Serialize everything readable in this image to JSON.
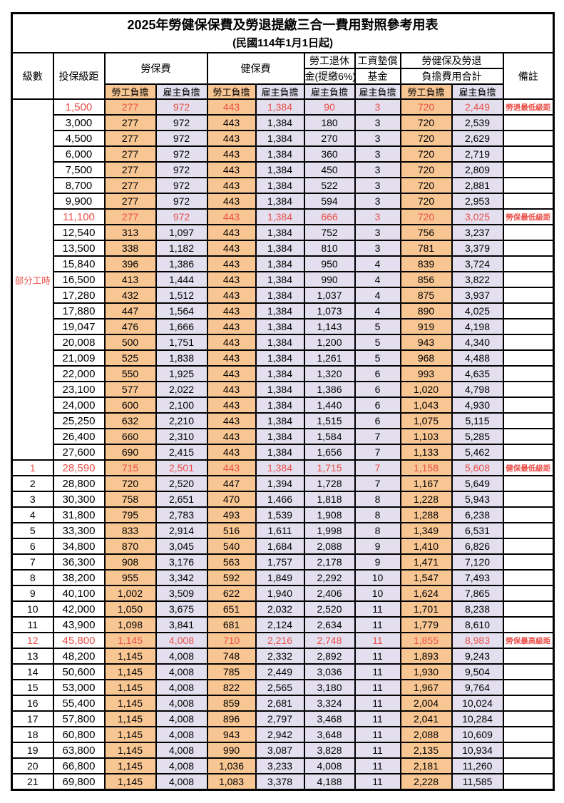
{
  "title": "2025年勞健保保費及勞退提繳三合一費用對照參考用表",
  "subtitle": "(民國114年1月1日起)",
  "colors": {
    "employee_bg": "#f8c693",
    "employer_bg": "#e3dfef",
    "highlight_red": "#ea4f48",
    "border": "#000000"
  },
  "header": {
    "level": "級數",
    "bracket": "投保級距",
    "labor_insurance": "勞保費",
    "health_insurance": "健保費",
    "pension_line1": "勞工退休",
    "pension_line2": "金(提繳6%)",
    "wage_fund_line1": "工資墊償",
    "wage_fund_line2": "基金",
    "total_line1": "勞健保及勞退",
    "total_line2": "負擔費用合計",
    "remark": "備註",
    "employee_share": "勞工負擔",
    "employer_share": "雇主負擔"
  },
  "part_time_label": "部分工時",
  "rows": [
    {
      "level": "",
      "bracket": "1,500",
      "li_emp": "277",
      "li_er": "972",
      "hi_emp": "443",
      "hi_er": "1,384",
      "pension": "90",
      "fund": "3",
      "tot_emp": "720",
      "tot_er": "2,449",
      "remark": "勞退最低級距",
      "red": true
    },
    {
      "level": "",
      "bracket": "3,000",
      "li_emp": "277",
      "li_er": "972",
      "hi_emp": "443",
      "hi_er": "1,384",
      "pension": "180",
      "fund": "3",
      "tot_emp": "720",
      "tot_er": "2,539",
      "remark": ""
    },
    {
      "level": "",
      "bracket": "4,500",
      "li_emp": "277",
      "li_er": "972",
      "hi_emp": "443",
      "hi_er": "1,384",
      "pension": "270",
      "fund": "3",
      "tot_emp": "720",
      "tot_er": "2,629",
      "remark": ""
    },
    {
      "level": "",
      "bracket": "6,000",
      "li_emp": "277",
      "li_er": "972",
      "hi_emp": "443",
      "hi_er": "1,384",
      "pension": "360",
      "fund": "3",
      "tot_emp": "720",
      "tot_er": "2,719",
      "remark": ""
    },
    {
      "level": "",
      "bracket": "7,500",
      "li_emp": "277",
      "li_er": "972",
      "hi_emp": "443",
      "hi_er": "1,384",
      "pension": "450",
      "fund": "3",
      "tot_emp": "720",
      "tot_er": "2,809",
      "remark": ""
    },
    {
      "level": "",
      "bracket": "8,700",
      "li_emp": "277",
      "li_er": "972",
      "hi_emp": "443",
      "hi_er": "1,384",
      "pension": "522",
      "fund": "3",
      "tot_emp": "720",
      "tot_er": "2,881",
      "remark": ""
    },
    {
      "level": "",
      "bracket": "9,900",
      "li_emp": "277",
      "li_er": "972",
      "hi_emp": "443",
      "hi_er": "1,384",
      "pension": "594",
      "fund": "3",
      "tot_emp": "720",
      "tot_er": "2,953",
      "remark": ""
    },
    {
      "level": "",
      "bracket": "11,100",
      "li_emp": "277",
      "li_er": "972",
      "hi_emp": "443",
      "hi_er": "1,384",
      "pension": "666",
      "fund": "3",
      "tot_emp": "720",
      "tot_er": "3,025",
      "remark": "勞保最低級距",
      "red": true
    },
    {
      "level": "",
      "bracket": "12,540",
      "li_emp": "313",
      "li_er": "1,097",
      "hi_emp": "443",
      "hi_er": "1,384",
      "pension": "752",
      "fund": "3",
      "tot_emp": "756",
      "tot_er": "3,237",
      "remark": ""
    },
    {
      "level": "",
      "bracket": "13,500",
      "li_emp": "338",
      "li_er": "1,182",
      "hi_emp": "443",
      "hi_er": "1,384",
      "pension": "810",
      "fund": "3",
      "tot_emp": "781",
      "tot_er": "3,379",
      "remark": ""
    },
    {
      "level": "",
      "bracket": "15,840",
      "li_emp": "396",
      "li_er": "1,386",
      "hi_emp": "443",
      "hi_er": "1,384",
      "pension": "950",
      "fund": "4",
      "tot_emp": "839",
      "tot_er": "3,724",
      "remark": ""
    },
    {
      "level": "",
      "bracket": "16,500",
      "li_emp": "413",
      "li_er": "1,444",
      "hi_emp": "443",
      "hi_er": "1,384",
      "pension": "990",
      "fund": "4",
      "tot_emp": "856",
      "tot_er": "3,822",
      "remark": ""
    },
    {
      "level": "",
      "bracket": "17,280",
      "li_emp": "432",
      "li_er": "1,512",
      "hi_emp": "443",
      "hi_er": "1,384",
      "pension": "1,037",
      "fund": "4",
      "tot_emp": "875",
      "tot_er": "3,937",
      "remark": ""
    },
    {
      "level": "",
      "bracket": "17,880",
      "li_emp": "447",
      "li_er": "1,564",
      "hi_emp": "443",
      "hi_er": "1,384",
      "pension": "1,073",
      "fund": "4",
      "tot_emp": "890",
      "tot_er": "4,025",
      "remark": ""
    },
    {
      "level": "",
      "bracket": "19,047",
      "li_emp": "476",
      "li_er": "1,666",
      "hi_emp": "443",
      "hi_er": "1,384",
      "pension": "1,143",
      "fund": "5",
      "tot_emp": "919",
      "tot_er": "4,198",
      "remark": ""
    },
    {
      "level": "",
      "bracket": "20,008",
      "li_emp": "500",
      "li_er": "1,751",
      "hi_emp": "443",
      "hi_er": "1,384",
      "pension": "1,200",
      "fund": "5",
      "tot_emp": "943",
      "tot_er": "4,340",
      "remark": ""
    },
    {
      "level": "",
      "bracket": "21,009",
      "li_emp": "525",
      "li_er": "1,838",
      "hi_emp": "443",
      "hi_er": "1,384",
      "pension": "1,261",
      "fund": "5",
      "tot_emp": "968",
      "tot_er": "4,488",
      "remark": ""
    },
    {
      "level": "",
      "bracket": "22,000",
      "li_emp": "550",
      "li_er": "1,925",
      "hi_emp": "443",
      "hi_er": "1,384",
      "pension": "1,320",
      "fund": "6",
      "tot_emp": "993",
      "tot_er": "4,635",
      "remark": ""
    },
    {
      "level": "",
      "bracket": "23,100",
      "li_emp": "577",
      "li_er": "2,022",
      "hi_emp": "443",
      "hi_er": "1,384",
      "pension": "1,386",
      "fund": "6",
      "tot_emp": "1,020",
      "tot_er": "4,798",
      "remark": ""
    },
    {
      "level": "",
      "bracket": "24,000",
      "li_emp": "600",
      "li_er": "2,100",
      "hi_emp": "443",
      "hi_er": "1,384",
      "pension": "1,440",
      "fund": "6",
      "tot_emp": "1,043",
      "tot_er": "4,930",
      "remark": ""
    },
    {
      "level": "",
      "bracket": "25,250",
      "li_emp": "632",
      "li_er": "2,210",
      "hi_emp": "443",
      "hi_er": "1,384",
      "pension": "1,515",
      "fund": "6",
      "tot_emp": "1,075",
      "tot_er": "5,115",
      "remark": ""
    },
    {
      "level": "",
      "bracket": "26,400",
      "li_emp": "660",
      "li_er": "2,310",
      "hi_emp": "443",
      "hi_er": "1,384",
      "pension": "1,584",
      "fund": "7",
      "tot_emp": "1,103",
      "tot_er": "5,285",
      "remark": ""
    },
    {
      "level": "",
      "bracket": "27,600",
      "li_emp": "690",
      "li_er": "2,415",
      "hi_emp": "443",
      "hi_er": "1,384",
      "pension": "1,656",
      "fund": "7",
      "tot_emp": "1,133",
      "tot_er": "5,462",
      "remark": ""
    },
    {
      "level": "1",
      "bracket": "28,590",
      "li_emp": "715",
      "li_er": "2,501",
      "hi_emp": "443",
      "hi_er": "1,384",
      "pension": "1,715",
      "fund": "7",
      "tot_emp": "1,158",
      "tot_er": "5,608",
      "remark": "健保最低級距",
      "red": true
    },
    {
      "level": "2",
      "bracket": "28,800",
      "li_emp": "720",
      "li_er": "2,520",
      "hi_emp": "447",
      "hi_er": "1,394",
      "pension": "1,728",
      "fund": "7",
      "tot_emp": "1,167",
      "tot_er": "5,649",
      "remark": ""
    },
    {
      "level": "3",
      "bracket": "30,300",
      "li_emp": "758",
      "li_er": "2,651",
      "hi_emp": "470",
      "hi_er": "1,466",
      "pension": "1,818",
      "fund": "8",
      "tot_emp": "1,228",
      "tot_er": "5,943",
      "remark": ""
    },
    {
      "level": "4",
      "bracket": "31,800",
      "li_emp": "795",
      "li_er": "2,783",
      "hi_emp": "493",
      "hi_er": "1,539",
      "pension": "1,908",
      "fund": "8",
      "tot_emp": "1,288",
      "tot_er": "6,238",
      "remark": ""
    },
    {
      "level": "5",
      "bracket": "33,300",
      "li_emp": "833",
      "li_er": "2,914",
      "hi_emp": "516",
      "hi_er": "1,611",
      "pension": "1,998",
      "fund": "8",
      "tot_emp": "1,349",
      "tot_er": "6,531",
      "remark": ""
    },
    {
      "level": "6",
      "bracket": "34,800",
      "li_emp": "870",
      "li_er": "3,045",
      "hi_emp": "540",
      "hi_er": "1,684",
      "pension": "2,088",
      "fund": "9",
      "tot_emp": "1,410",
      "tot_er": "6,826",
      "remark": ""
    },
    {
      "level": "7",
      "bracket": "36,300",
      "li_emp": "908",
      "li_er": "3,176",
      "hi_emp": "563",
      "hi_er": "1,757",
      "pension": "2,178",
      "fund": "9",
      "tot_emp": "1,471",
      "tot_er": "7,120",
      "remark": ""
    },
    {
      "level": "8",
      "bracket": "38,200",
      "li_emp": "955",
      "li_er": "3,342",
      "hi_emp": "592",
      "hi_er": "1,849",
      "pension": "2,292",
      "fund": "10",
      "tot_emp": "1,547",
      "tot_er": "7,493",
      "remark": ""
    },
    {
      "level": "9",
      "bracket": "40,100",
      "li_emp": "1,002",
      "li_er": "3,509",
      "hi_emp": "622",
      "hi_er": "1,940",
      "pension": "2,406",
      "fund": "10",
      "tot_emp": "1,624",
      "tot_er": "7,865",
      "remark": ""
    },
    {
      "level": "10",
      "bracket": "42,000",
      "li_emp": "1,050",
      "li_er": "3,675",
      "hi_emp": "651",
      "hi_er": "2,032",
      "pension": "2,520",
      "fund": "11",
      "tot_emp": "1,701",
      "tot_er": "8,238",
      "remark": ""
    },
    {
      "level": "11",
      "bracket": "43,900",
      "li_emp": "1,098",
      "li_er": "3,841",
      "hi_emp": "681",
      "hi_er": "2,124",
      "pension": "2,634",
      "fund": "11",
      "tot_emp": "1,779",
      "tot_er": "8,610",
      "remark": ""
    },
    {
      "level": "12",
      "bracket": "45,800",
      "li_emp": "1,145",
      "li_er": "4,008",
      "hi_emp": "710",
      "hi_er": "2,216",
      "pension": "2,748",
      "fund": "11",
      "tot_emp": "1,855",
      "tot_er": "8,983",
      "remark": "勞保最高級距",
      "red": true
    },
    {
      "level": "13",
      "bracket": "48,200",
      "li_emp": "1,145",
      "li_er": "4,008",
      "hi_emp": "748",
      "hi_er": "2,332",
      "pension": "2,892",
      "fund": "11",
      "tot_emp": "1,893",
      "tot_er": "9,243",
      "remark": ""
    },
    {
      "level": "14",
      "bracket": "50,600",
      "li_emp": "1,145",
      "li_er": "4,008",
      "hi_emp": "785",
      "hi_er": "2,449",
      "pension": "3,036",
      "fund": "11",
      "tot_emp": "1,930",
      "tot_er": "9,504",
      "remark": ""
    },
    {
      "level": "15",
      "bracket": "53,000",
      "li_emp": "1,145",
      "li_er": "4,008",
      "hi_emp": "822",
      "hi_er": "2,565",
      "pension": "3,180",
      "fund": "11",
      "tot_emp": "1,967",
      "tot_er": "9,764",
      "remark": ""
    },
    {
      "level": "16",
      "bracket": "55,400",
      "li_emp": "1,145",
      "li_er": "4,008",
      "hi_emp": "859",
      "hi_er": "2,681",
      "pension": "3,324",
      "fund": "11",
      "tot_emp": "2,004",
      "tot_er": "10,024",
      "remark": ""
    },
    {
      "level": "17",
      "bracket": "57,800",
      "li_emp": "1,145",
      "li_er": "4,008",
      "hi_emp": "896",
      "hi_er": "2,797",
      "pension": "3,468",
      "fund": "11",
      "tot_emp": "2,041",
      "tot_er": "10,284",
      "remark": ""
    },
    {
      "level": "18",
      "bracket": "60,800",
      "li_emp": "1,145",
      "li_er": "4,008",
      "hi_emp": "943",
      "hi_er": "2,942",
      "pension": "3,648",
      "fund": "11",
      "tot_emp": "2,088",
      "tot_er": "10,609",
      "remark": ""
    },
    {
      "level": "19",
      "bracket": "63,800",
      "li_emp": "1,145",
      "li_er": "4,008",
      "hi_emp": "990",
      "hi_er": "3,087",
      "pension": "3,828",
      "fund": "11",
      "tot_emp": "2,135",
      "tot_er": "10,934",
      "remark": ""
    },
    {
      "level": "20",
      "bracket": "66,800",
      "li_emp": "1,145",
      "li_er": "4,008",
      "hi_emp": "1,036",
      "hi_er": "3,233",
      "pension": "4,008",
      "fund": "11",
      "tot_emp": "2,181",
      "tot_er": "11,260",
      "remark": ""
    },
    {
      "level": "21",
      "bracket": "69,800",
      "li_emp": "1,145",
      "li_er": "4,008",
      "hi_emp": "1,083",
      "hi_er": "3,378",
      "pension": "4,188",
      "fund": "11",
      "tot_emp": "2,228",
      "tot_er": "11,585",
      "remark": ""
    }
  ]
}
